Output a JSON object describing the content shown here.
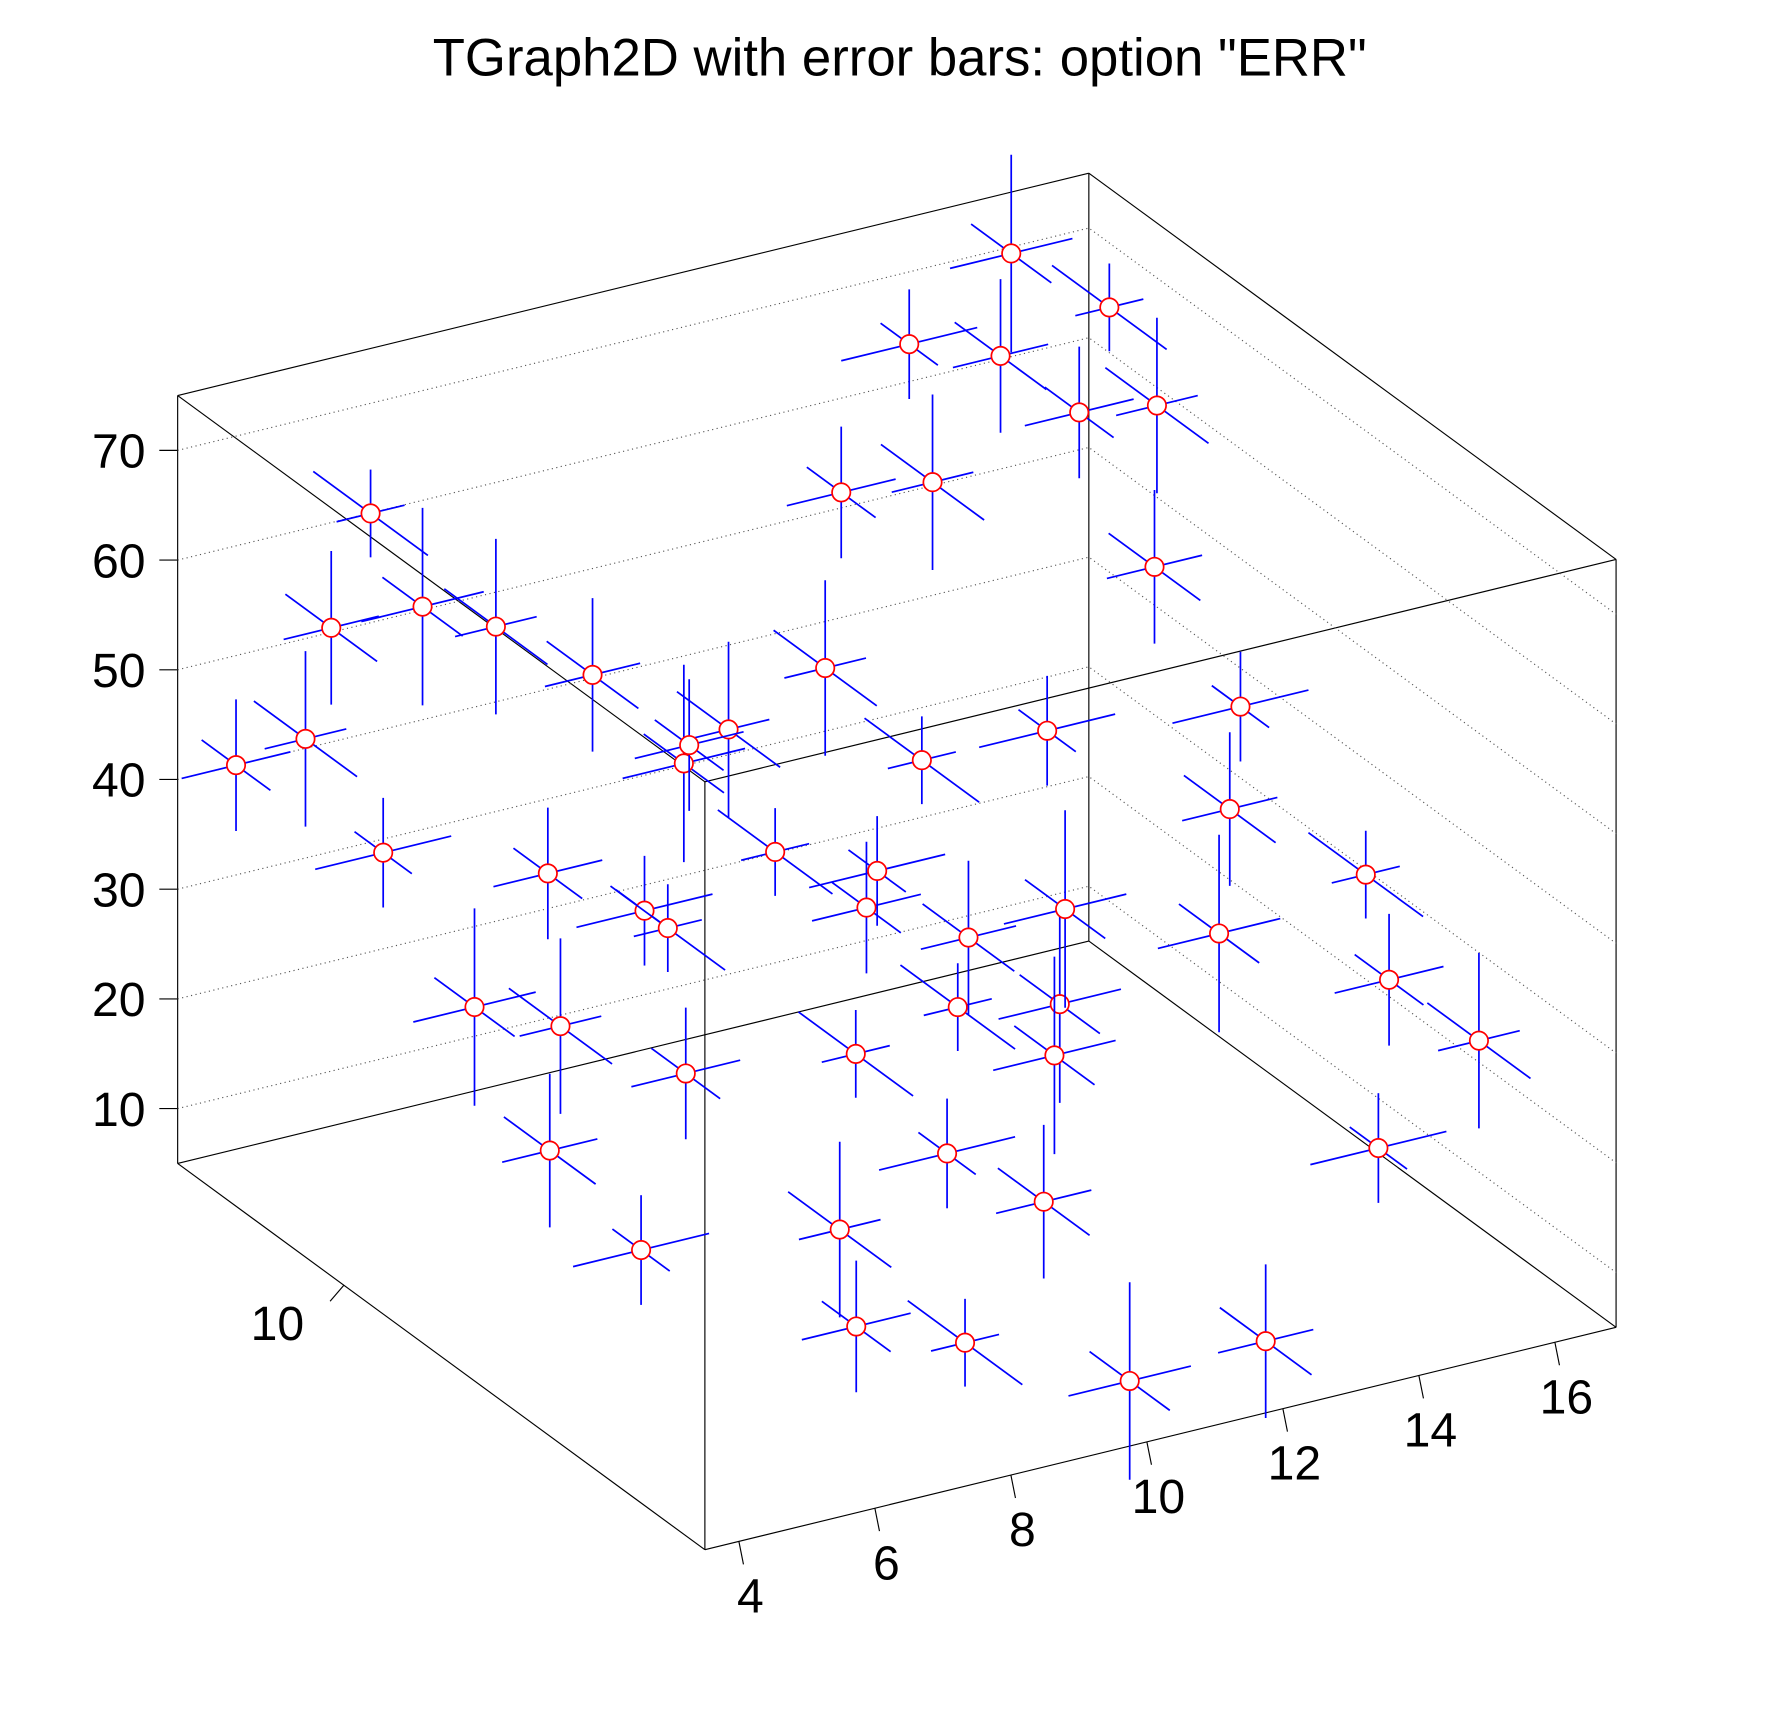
{
  "chart_data": {
    "type": "scatter3d_errors",
    "title": "TGraph2D with error bars: option \"ERR\"",
    "x": [
      3.6,
      4.2,
      4.5,
      5,
      5.5,
      6,
      6.5,
      7,
      7.5,
      8,
      8.5,
      9,
      9.5,
      10,
      10.5,
      11,
      11.5,
      12,
      12.5,
      13,
      13.5,
      14,
      15,
      15.6,
      16,
      16.3,
      15,
      14,
      13,
      16,
      15.5,
      16.4,
      14.5,
      12,
      10,
      8,
      6.4,
      7,
      9,
      10,
      11,
      8.5,
      6,
      5,
      4.5,
      4,
      5,
      7,
      9,
      11,
      13,
      15,
      12,
      10
    ],
    "y": [
      12,
      11.5,
      10.5,
      12,
      11,
      12.5,
      10,
      11.5,
      9.5,
      11,
      10,
      9,
      8,
      11,
      9,
      8,
      7,
      10,
      12,
      11,
      12,
      11,
      12,
      11,
      12,
      11,
      8,
      7,
      6,
      7,
      6,
      5.5,
      5,
      4,
      4,
      4.5,
      4.5,
      5.5,
      6,
      5.5,
      6.5,
      7,
      7,
      8,
      6,
      7,
      9.5,
      8.5,
      10.5,
      10.5,
      9,
      9.5,
      7.5,
      7
    ],
    "z": [
      44.6,
      48,
      41,
      55,
      60,
      62,
      38,
      54,
      35,
      50,
      45,
      40,
      38,
      42,
      36,
      33,
      30,
      40,
      56,
      60,
      68,
      70,
      74,
      72,
      58,
      62,
      48,
      44,
      38,
      35,
      30,
      25,
      20,
      10,
      9.4,
      14,
      17.9,
      22,
      24,
      20,
      28,
      30,
      32,
      34,
      22,
      28,
      30,
      38,
      44,
      48,
      45,
      55,
      36,
      32
    ],
    "ex": [
      0.8,
      0.6,
      1,
      0.7,
      0.9,
      0.5,
      0.8,
      0.6,
      1,
      0.7,
      0.9,
      0.5,
      0.8,
      0.6,
      1,
      0.7,
      0.9,
      0.5,
      0.8,
      0.6,
      1,
      0.7,
      0.9,
      0.5,
      0.8,
      0.6,
      1,
      0.7,
      0.9,
      0.5,
      0.8,
      0.6,
      1,
      0.7,
      0.9,
      0.5,
      0.8,
      0.6,
      1,
      0.7,
      0.9,
      0.5,
      0.8,
      0.6,
      1,
      0.7,
      0.9,
      0.5,
      0.8,
      0.6,
      1,
      0.7,
      0.9,
      0.5
    ],
    "ey": [
      0.6,
      0.9,
      0.5,
      0.8,
      0.7,
      1,
      0.6,
      0.9,
      0.5,
      0.8,
      0.7,
      1,
      0.6,
      0.9,
      0.5,
      0.8,
      0.7,
      1,
      0.6,
      0.9,
      0.5,
      0.8,
      0.7,
      1,
      0.6,
      0.9,
      0.5,
      0.8,
      0.7,
      1,
      0.6,
      0.9,
      0.5,
      0.8,
      0.7,
      1,
      0.6,
      0.9,
      0.5,
      0.8,
      0.7,
      1,
      0.6,
      0.9,
      0.5,
      0.8,
      0.7,
      1,
      0.6,
      0.9,
      0.5,
      0.8,
      0.7,
      1
    ],
    "ez": [
      6,
      8,
      5,
      7,
      9,
      4,
      6,
      8,
      5,
      7,
      9,
      4,
      6,
      8,
      5,
      7,
      9,
      4,
      6,
      8,
      5,
      7,
      9,
      4,
      6,
      8,
      5,
      7,
      9,
      4,
      6,
      8,
      5,
      7,
      9,
      4,
      6,
      8,
      5,
      7,
      9,
      4,
      6,
      8,
      5,
      7,
      9,
      4,
      6,
      8,
      5,
      7,
      9,
      4
    ],
    "xlim": [
      3.5,
      16.9
    ],
    "ylim": [
      3.7,
      12.9
    ],
    "zlim": [
      5,
      75
    ],
    "xticks": [
      4,
      6,
      8,
      10,
      12,
      14,
      16
    ],
    "yticks": [
      10
    ],
    "zticks": [
      10,
      20,
      30,
      40,
      50,
      60,
      70
    ],
    "grid": true,
    "marker_color": "#ff0000",
    "error_color": "#0000ff"
  }
}
